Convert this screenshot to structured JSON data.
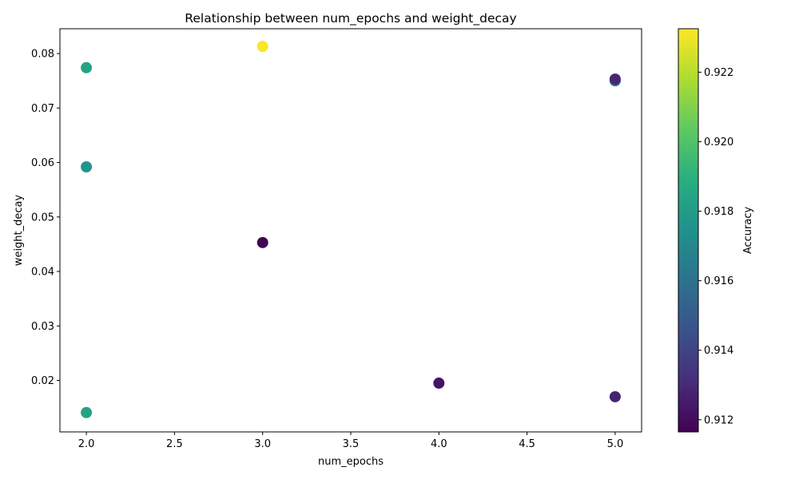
{
  "chart_data": {
    "type": "scatter",
    "title": "Relationship between num_epochs and weight_decay",
    "xlabel": "num_epochs",
    "ylabel": "weight_decay",
    "xlim": [
      1.85,
      5.15
    ],
    "ylim": [
      0.01055,
      0.08455
    ],
    "x_ticks": [
      2.0,
      2.5,
      3.0,
      3.5,
      4.0,
      4.5,
      5.0
    ],
    "x_tick_labels": [
      "2.0",
      "2.5",
      "3.0",
      "3.5",
      "4.0",
      "4.5",
      "5.0"
    ],
    "y_ticks": [
      0.02,
      0.03,
      0.04,
      0.05,
      0.06,
      0.07,
      0.08
    ],
    "y_tick_labels": [
      "0.02",
      "0.03",
      "0.04",
      "0.05",
      "0.06",
      "0.07",
      "0.08"
    ],
    "grid": false,
    "colormap": "viridis",
    "colorbar": {
      "label": "Accuracy",
      "range": [
        0.91165,
        0.92325
      ],
      "ticks": [
        0.912,
        0.914,
        0.916,
        0.918,
        0.92,
        0.922
      ],
      "tick_labels": [
        "0.912",
        "0.914",
        "0.916",
        "0.918",
        "0.920",
        "0.922"
      ]
    },
    "points": [
      {
        "x": 2,
        "y": 0.0774,
        "accuracy": 0.9184
      },
      {
        "x": 2,
        "y": 0.0592,
        "accuracy": 0.9177
      },
      {
        "x": 2,
        "y": 0.0141,
        "accuracy": 0.9184
      },
      {
        "x": 3,
        "y": 0.0813,
        "accuracy": 0.9232
      },
      {
        "x": 3,
        "y": 0.0453,
        "accuracy": 0.9117
      },
      {
        "x": 4,
        "y": 0.0195,
        "accuracy": 0.9123
      },
      {
        "x": 5,
        "y": 0.075,
        "accuracy": 0.916
      },
      {
        "x": 5,
        "y": 0.0753,
        "accuracy": 0.9129
      },
      {
        "x": 5,
        "y": 0.017,
        "accuracy": 0.9128
      }
    ]
  }
}
